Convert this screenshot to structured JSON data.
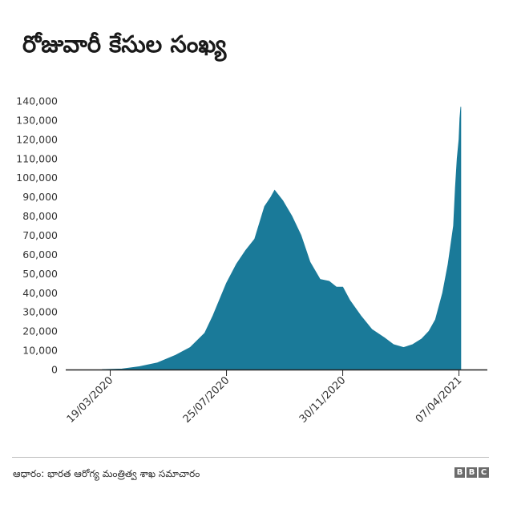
{
  "title": "రోజువారీ కేసుల సంఖ్య",
  "source": "ఆధారం: భారత ఆరోగ్య మంత్రిత్వ శాఖ సమాచారం",
  "logo_letters": [
    "B",
    "B",
    "C"
  ],
  "colors": {
    "area": "#1a7a99",
    "axis": "#222222"
  },
  "chart_data": {
    "type": "area",
    "title": "రోజువారీ కేసుల సంఖ్య",
    "xlabel": "",
    "ylabel": "",
    "ylim": [
      0,
      140000
    ],
    "y_ticks": [
      "0",
      "10,000",
      "20,000",
      "30,000",
      "40,000",
      "50,000",
      "60,000",
      "70,000",
      "80,000",
      "90,000",
      "100,000",
      "110,000",
      "120,000",
      "130,000",
      "140,000"
    ],
    "x_start": "2020-01-30",
    "x_end": "2021-05-10",
    "x_ticks": [
      {
        "date": "2020-03-19",
        "label": "19/03/2020"
      },
      {
        "date": "2020-07-25",
        "label": "25/07/2020"
      },
      {
        "date": "2020-11-30",
        "label": "30/11/2020"
      },
      {
        "date": "2021-04-07",
        "label": "07/04/2021"
      }
    ],
    "x": [
      "2020-03-10",
      "2020-04-01",
      "2020-04-20",
      "2020-05-10",
      "2020-05-30",
      "2020-06-15",
      "2020-07-01",
      "2020-07-10",
      "2020-07-25",
      "2020-08-05",
      "2020-08-15",
      "2020-08-25",
      "2020-09-05",
      "2020-09-12",
      "2020-09-16",
      "2020-09-25",
      "2020-10-05",
      "2020-10-15",
      "2020-10-25",
      "2020-11-05",
      "2020-11-15",
      "2020-11-23",
      "2020-11-30",
      "2020-12-08",
      "2020-12-20",
      "2021-01-01",
      "2021-01-15",
      "2021-01-25",
      "2021-02-05",
      "2021-02-15",
      "2021-02-25",
      "2021-03-05",
      "2021-03-12",
      "2021-03-20",
      "2021-03-26",
      "2021-04-01",
      "2021-04-03",
      "2021-04-05",
      "2021-04-07",
      "2021-04-08",
      "2021-04-09"
    ],
    "series": [
      {
        "values": [
          0,
          300,
          1500,
          3500,
          7500,
          11500,
          19000,
          28000,
          45000,
          55000,
          62000,
          68000,
          85000,
          90000,
          93500,
          88000,
          80000,
          70000,
          56000,
          47000,
          46000,
          43000,
          43000,
          36000,
          28000,
          21000,
          16500,
          13000,
          11500,
          13000,
          16000,
          20000,
          26000,
          40000,
          55000,
          75000,
          95000,
          110000,
          120000,
          131000,
          137000
        ]
      }
    ]
  }
}
